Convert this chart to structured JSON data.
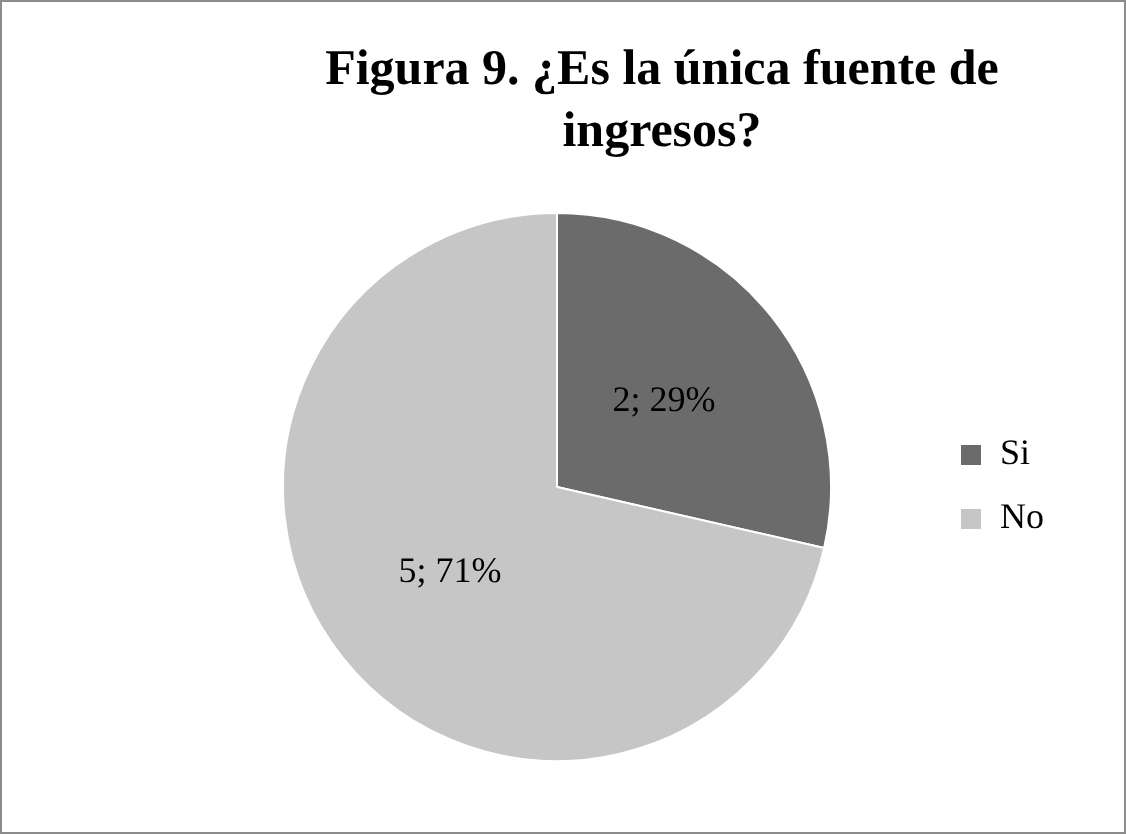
{
  "chart_data": {
    "type": "pie",
    "title": "Figura 9. ¿Es la única fuente de ingresos?",
    "categories": [
      "Si",
      "No"
    ],
    "values": [
      2,
      5
    ],
    "colors": [
      "#6b6b6b",
      "#c6c6c6"
    ],
    "value_labels": [
      "2; 29%",
      "5; 71%"
    ],
    "legend": "right"
  }
}
